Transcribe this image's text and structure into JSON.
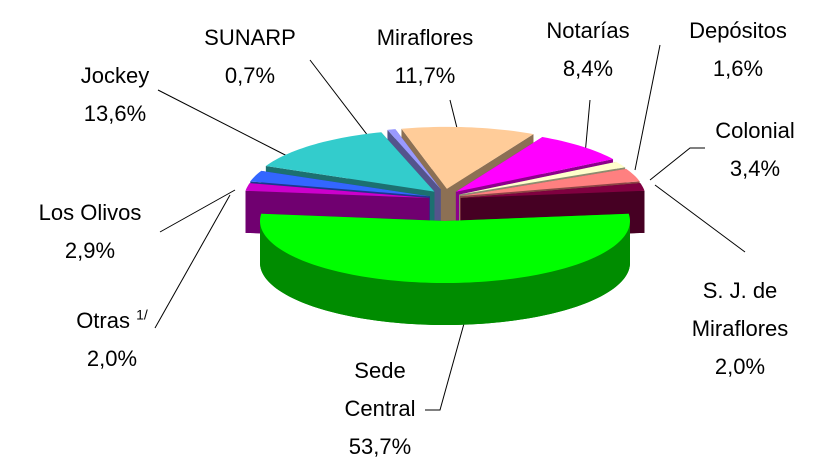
{
  "chart_data": {
    "type": "pie3d",
    "categories": [
      "Sede Central",
      "Otras",
      "Los Olivos",
      "Jockey",
      "SUNARP",
      "Miraflores",
      "Notarías",
      "Depósitos",
      "Colonial",
      "S. J. de Miraflores"
    ],
    "label_notes": [
      null,
      "1/",
      null,
      null,
      null,
      null,
      null,
      null,
      null,
      null
    ],
    "values": [
      53.7,
      2.0,
      2.9,
      13.6,
      0.7,
      11.7,
      8.4,
      1.6,
      3.4,
      2.0
    ],
    "value_labels": [
      "53,7%",
      "2,0%",
      "2,9%",
      "13,6%",
      "0,7%",
      "11,7%",
      "8,4%",
      "1,6%",
      "3,4%",
      "2,0%"
    ],
    "colors": [
      "#00ff00",
      "#cc00cc",
      "#3366ff",
      "#33cccc",
      "#9999ff",
      "#ffcc99",
      "#ff00ff",
      "#ffffcc",
      "#ff8080",
      "#800040"
    ]
  }
}
